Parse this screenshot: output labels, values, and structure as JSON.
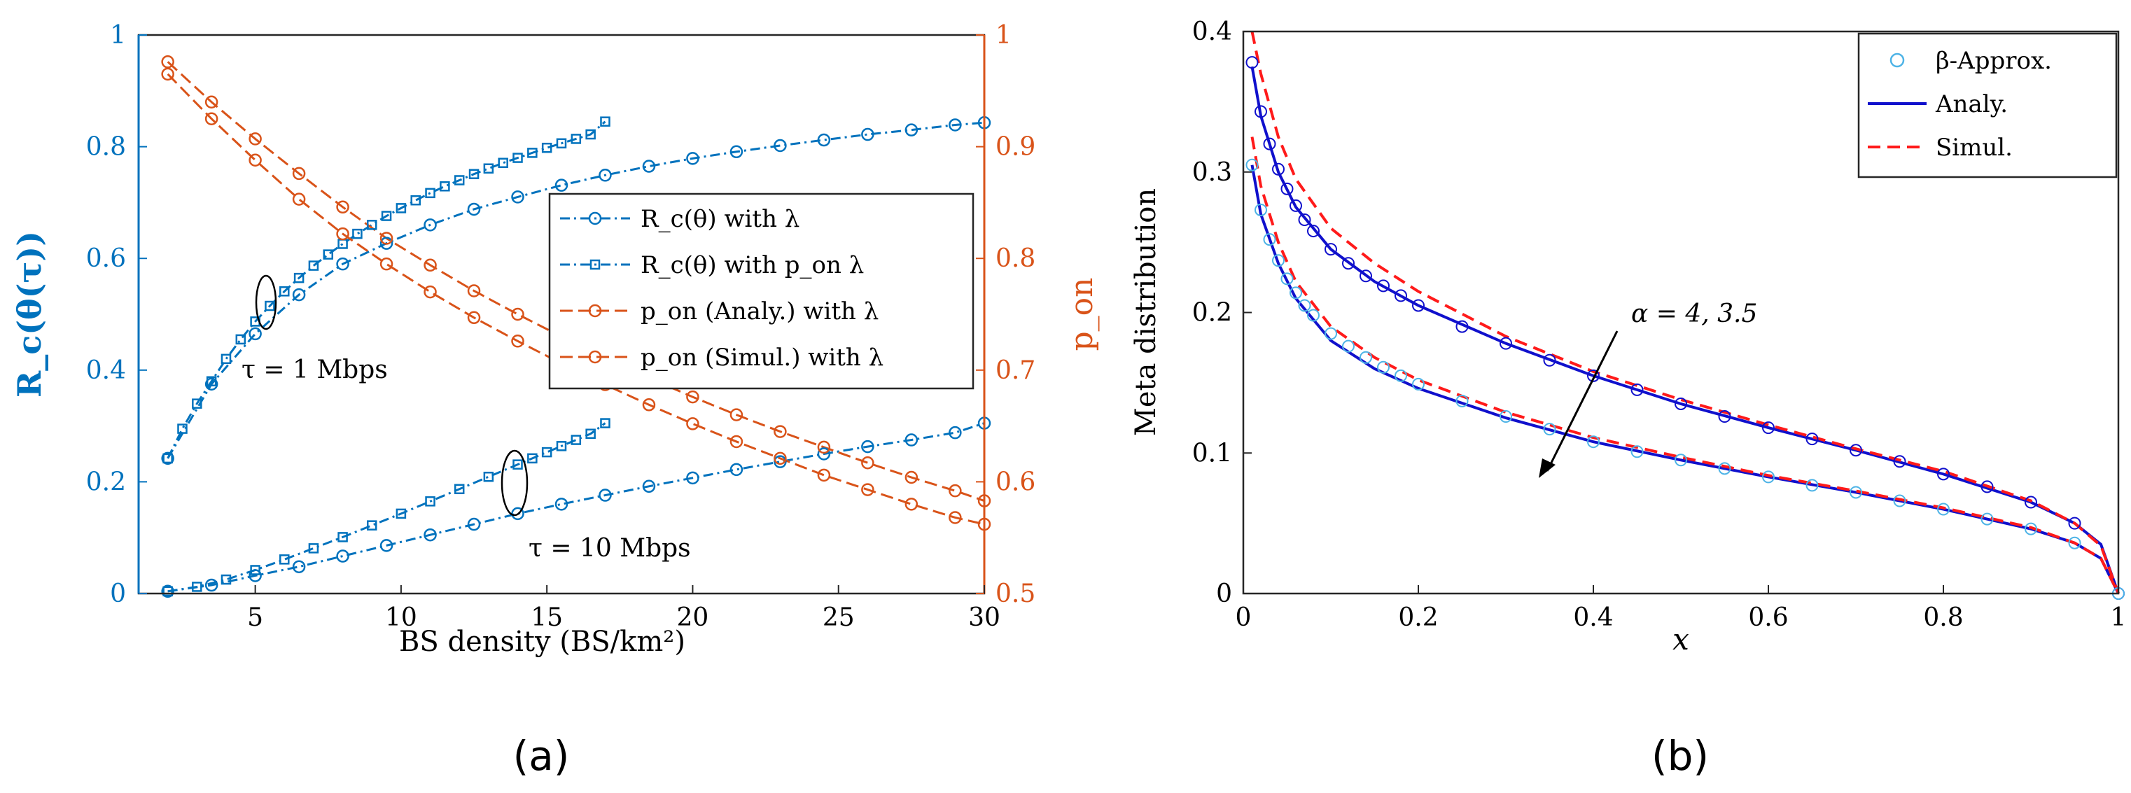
{
  "colors": {
    "blue": "#0072bd",
    "orange": "#d95319",
    "darkblue": "#1010cc",
    "red": "#ff1a1a",
    "lightblue": "#4db3e6",
    "black": "#000000"
  },
  "chart_data": [
    {
      "panel": "(a)",
      "type": "line",
      "xlabel": "BS density (BS/km²)",
      "ylabel_left": "R_c(θ(τ))",
      "ylabel_right": "p_on",
      "xlim": [
        1,
        30
      ],
      "xticks": [
        5,
        10,
        15,
        20,
        25,
        30
      ],
      "ylim_left": [
        0,
        1
      ],
      "yticks_left": [
        "0",
        "0.2",
        "0.4",
        "0.6",
        "0.8",
        "1"
      ],
      "ylim_right": [
        0.5,
        1
      ],
      "yticks_right": [
        "0.5",
        "0.6",
        "0.7",
        "0.8",
        "0.9",
        "1"
      ],
      "annotations": [
        "τ = 1 Mbps",
        "τ = 10 Mbps"
      ],
      "legend": [
        {
          "label": "R_c(θ) with λ",
          "marker": "circle",
          "color": "blue"
        },
        {
          "label": "R_c(θ) with p_on λ",
          "marker": "square",
          "color": "blue"
        },
        {
          "label": "p_on (Analy.) with λ",
          "marker": "circle",
          "color": "orange"
        },
        {
          "label": "p_on (Simul.) with λ",
          "marker": "circle",
          "color": "orange"
        }
      ],
      "series": [
        {
          "name": "Rc with λ, τ=1 Mbps",
          "axis": "left",
          "marker": "circle",
          "color": "blue",
          "x": [
            2,
            3.5,
            5,
            6.5,
            8,
            9.5,
            11,
            12.5,
            14,
            15.5,
            17,
            18.5,
            20,
            21.5,
            23,
            24.5,
            26,
            27.5,
            29,
            30
          ],
          "y": [
            0.242,
            0.375,
            0.465,
            0.535,
            0.59,
            0.627,
            0.66,
            0.688,
            0.71,
            0.731,
            0.749,
            0.765,
            0.779,
            0.791,
            0.802,
            0.812,
            0.822,
            0.83,
            0.839,
            0.843
          ]
        },
        {
          "name": "Rc with p_on λ, τ=1 Mbps",
          "axis": "left",
          "marker": "square",
          "color": "blue",
          "x": [
            2,
            2.5,
            3,
            3.5,
            4,
            4.5,
            5,
            5.5,
            6,
            6.5,
            7,
            7.5,
            8,
            8.5,
            9,
            9.5,
            10,
            10.5,
            11,
            11.5,
            12,
            12.5,
            13,
            13.5,
            14,
            14.5,
            15,
            15.5,
            16,
            16.5,
            17
          ],
          "y": [
            0.242,
            0.295,
            0.34,
            0.38,
            0.42,
            0.455,
            0.487,
            0.515,
            0.541,
            0.565,
            0.587,
            0.607,
            0.626,
            0.644,
            0.66,
            0.676,
            0.69,
            0.704,
            0.717,
            0.729,
            0.74,
            0.751,
            0.761,
            0.771,
            0.78,
            0.789,
            0.798,
            0.806,
            0.814,
            0.822,
            0.845
          ]
        },
        {
          "name": "Rc with λ, τ=10 Mbps",
          "axis": "left",
          "marker": "circle",
          "color": "blue",
          "x": [
            2,
            3.5,
            5,
            6.5,
            8,
            9.5,
            11,
            12.5,
            14,
            15.5,
            17,
            18.5,
            20,
            21.5,
            23,
            24.5,
            26,
            27.5,
            29,
            30
          ],
          "y": [
            0.004,
            0.015,
            0.032,
            0.048,
            0.067,
            0.086,
            0.105,
            0.124,
            0.143,
            0.16,
            0.176,
            0.192,
            0.207,
            0.222,
            0.236,
            0.25,
            0.263,
            0.275,
            0.288,
            0.305
          ]
        },
        {
          "name": "Rc with p_on λ, τ=10 Mbps",
          "axis": "left",
          "marker": "square",
          "color": "blue",
          "x": [
            2,
            3,
            4,
            5,
            6,
            7,
            8,
            9,
            10,
            11,
            12,
            13,
            14,
            14.5,
            15,
            15.5,
            16,
            16.5,
            17
          ],
          "y": [
            0.004,
            0.012,
            0.025,
            0.042,
            0.061,
            0.081,
            0.101,
            0.122,
            0.143,
            0.165,
            0.187,
            0.209,
            0.231,
            0.242,
            0.253,
            0.264,
            0.275,
            0.286,
            0.305
          ]
        },
        {
          "name": "p_on (Analy.) with λ",
          "axis": "right",
          "marker": "circle",
          "color": "orange",
          "x": [
            2,
            3.5,
            5,
            6.5,
            8,
            9.5,
            11,
            12.5,
            14,
            15.5,
            17,
            18.5,
            20,
            21.5,
            23,
            24.5,
            26,
            27.5,
            29,
            30
          ],
          "y": [
            0.976,
            0.94,
            0.907,
            0.876,
            0.846,
            0.818,
            0.794,
            0.771,
            0.75,
            0.73,
            0.711,
            0.693,
            0.676,
            0.66,
            0.645,
            0.631,
            0.617,
            0.604,
            0.592,
            0.583
          ]
        },
        {
          "name": "p_on (Simul.) with λ",
          "axis": "right",
          "marker": "circle",
          "color": "orange",
          "x": [
            2,
            3.5,
            5,
            6.5,
            8,
            9.5,
            11,
            12.5,
            14,
            15.5,
            17,
            18.5,
            20,
            21.5,
            23,
            24.5,
            26,
            27.5,
            29,
            30
          ],
          "y": [
            0.965,
            0.925,
            0.888,
            0.853,
            0.822,
            0.795,
            0.77,
            0.747,
            0.726,
            0.706,
            0.687,
            0.669,
            0.652,
            0.636,
            0.621,
            0.606,
            0.593,
            0.58,
            0.568,
            0.562
          ]
        }
      ]
    },
    {
      "panel": "(b)",
      "type": "line",
      "xlabel": "x",
      "ylabel": "Meta distribution",
      "xlim": [
        0,
        1
      ],
      "xticks": [
        "0",
        "0.2",
        "0.4",
        "0.6",
        "0.8",
        "1"
      ],
      "ylim": [
        0,
        0.4
      ],
      "yticks": [
        "0",
        "0.1",
        "0.2",
        "0.3",
        "0.4"
      ],
      "annotation": "α = 4, 3.5",
      "legend": [
        {
          "label": "β-Approx.",
          "style": "circle",
          "color": "lightblue"
        },
        {
          "label": "Analy.",
          "style": "solid",
          "color": "darkblue"
        },
        {
          "label": "Simul.",
          "style": "dashed",
          "color": "red"
        }
      ],
      "series": [
        {
          "name": "Analy. α=4",
          "style": "solid",
          "color": "darkblue",
          "x": [
            0.01,
            0.02,
            0.04,
            0.06,
            0.1,
            0.15,
            0.2,
            0.3,
            0.4,
            0.5,
            0.6,
            0.7,
            0.8,
            0.9,
            0.95,
            0.98,
            1.0
          ],
          "y": [
            0.375,
            0.34,
            0.3,
            0.275,
            0.245,
            0.222,
            0.205,
            0.178,
            0.155,
            0.135,
            0.118,
            0.102,
            0.085,
            0.065,
            0.05,
            0.035,
            0.0
          ]
        },
        {
          "name": "Analy. α=3.5",
          "style": "solid",
          "color": "darkblue",
          "x": [
            0.01,
            0.02,
            0.04,
            0.06,
            0.1,
            0.15,
            0.2,
            0.3,
            0.4,
            0.5,
            0.6,
            0.7,
            0.8,
            0.9,
            0.95,
            0.98,
            1.0
          ],
          "y": [
            0.305,
            0.27,
            0.235,
            0.21,
            0.18,
            0.16,
            0.146,
            0.125,
            0.108,
            0.095,
            0.083,
            0.072,
            0.06,
            0.046,
            0.036,
            0.025,
            0.0
          ]
        },
        {
          "name": "Simul. α=4",
          "style": "dashed",
          "color": "red",
          "x": [
            0.01,
            0.02,
            0.04,
            0.06,
            0.1,
            0.15,
            0.2,
            0.3,
            0.4,
            0.5,
            0.6,
            0.7,
            0.8,
            0.9,
            0.95,
            0.98,
            1.0
          ],
          "y": [
            0.4,
            0.37,
            0.325,
            0.295,
            0.26,
            0.235,
            0.215,
            0.183,
            0.158,
            0.138,
            0.12,
            0.103,
            0.087,
            0.066,
            0.05,
            0.034,
            0.0
          ]
        },
        {
          "name": "Simul. α=3.5",
          "style": "dashed",
          "color": "red",
          "x": [
            0.01,
            0.02,
            0.04,
            0.06,
            0.1,
            0.15,
            0.2,
            0.3,
            0.4,
            0.5,
            0.6,
            0.7,
            0.8,
            0.9,
            0.95,
            0.98,
            1.0
          ],
          "y": [
            0.325,
            0.29,
            0.25,
            0.222,
            0.19,
            0.168,
            0.152,
            0.129,
            0.111,
            0.097,
            0.084,
            0.073,
            0.061,
            0.047,
            0.036,
            0.025,
            0.0
          ]
        },
        {
          "name": "β-Approx. α=4",
          "style": "circle",
          "color": "darkblue",
          "x": [
            0.01,
            0.02,
            0.03,
            0.04,
            0.05,
            0.06,
            0.07,
            0.08,
            0.1,
            0.12,
            0.14,
            0.16,
            0.18,
            0.2,
            0.25,
            0.3,
            0.35,
            0.4,
            0.45,
            0.5,
            0.55,
            0.6,
            0.65,
            0.7,
            0.75,
            0.8,
            0.85,
            0.9,
            0.95,
            1.0
          ],
          "y": [
            0.378,
            0.343,
            0.32,
            0.302,
            0.288,
            0.276,
            0.266,
            0.258,
            0.245,
            0.235,
            0.226,
            0.219,
            0.212,
            0.205,
            0.19,
            0.178,
            0.166,
            0.155,
            0.145,
            0.135,
            0.126,
            0.118,
            0.11,
            0.102,
            0.094,
            0.085,
            0.076,
            0.065,
            0.05,
            0.0
          ]
        },
        {
          "name": "β-Approx. α=3.5",
          "style": "circle",
          "color": "lightblue",
          "x": [
            0.01,
            0.02,
            0.03,
            0.04,
            0.05,
            0.06,
            0.07,
            0.08,
            0.1,
            0.12,
            0.14,
            0.16,
            0.18,
            0.2,
            0.25,
            0.3,
            0.35,
            0.4,
            0.45,
            0.5,
            0.55,
            0.6,
            0.65,
            0.7,
            0.75,
            0.8,
            0.85,
            0.9,
            0.95,
            1.0
          ],
          "y": [
            0.305,
            0.273,
            0.252,
            0.237,
            0.224,
            0.214,
            0.205,
            0.198,
            0.185,
            0.176,
            0.168,
            0.161,
            0.155,
            0.149,
            0.137,
            0.126,
            0.117,
            0.108,
            0.101,
            0.095,
            0.089,
            0.083,
            0.077,
            0.072,
            0.066,
            0.06,
            0.053,
            0.046,
            0.036,
            0.0
          ]
        }
      ]
    }
  ],
  "captions": {
    "a": "(a)",
    "b": "(b)"
  }
}
